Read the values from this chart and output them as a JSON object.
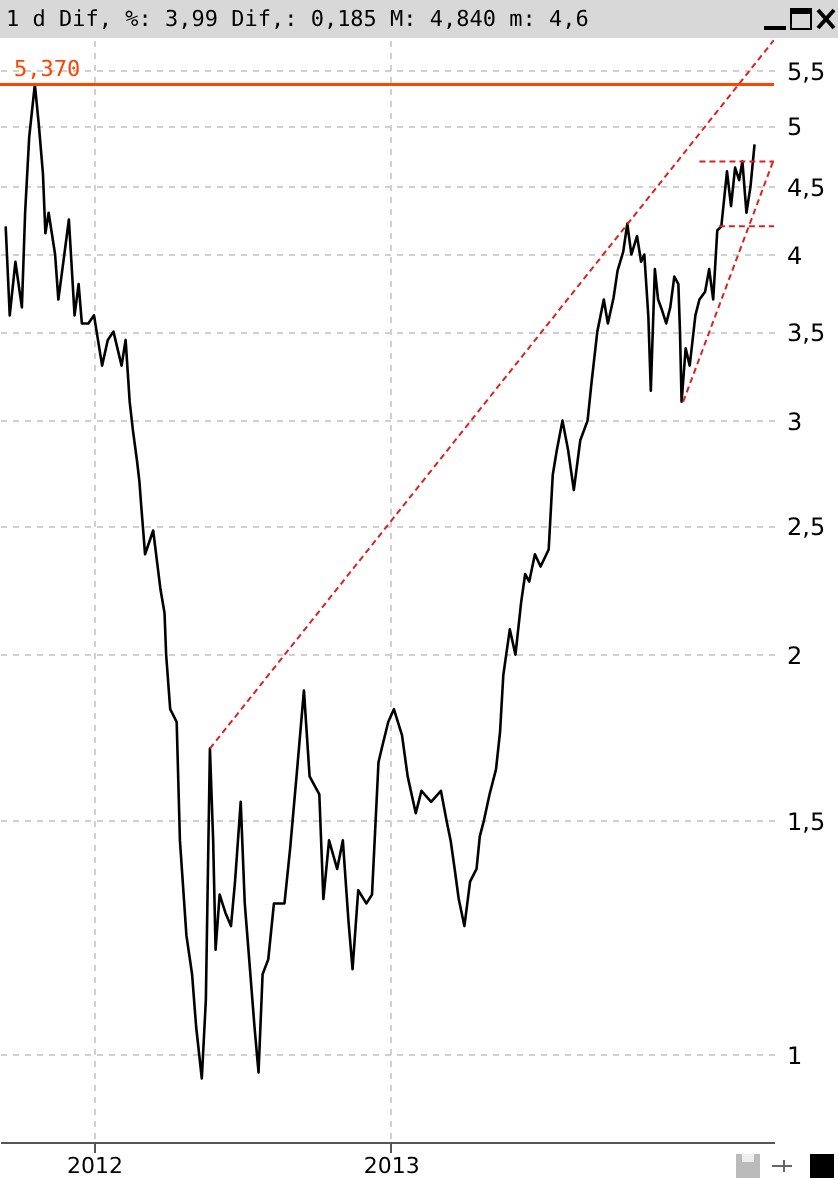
{
  "chart_data": {
    "type": "line",
    "title": "1 d Dif, %: 3,99 Dif,: 0,185 M: 4,840 m: 4,6",
    "log": "y",
    "grid": true,
    "marker": "none",
    "xlim": [
      "2011-09-07",
      "2014-04-19"
    ],
    "xticks": [
      "2012",
      "2013"
    ],
    "ylim": [
      0.86,
      5.8
    ],
    "yticks": [
      1,
      {
        "value": 1.5,
        "label": "1,5"
      },
      2,
      {
        "value": 2.5,
        "label": "2,5"
      },
      3,
      {
        "value": 3.5,
        "label": "3,5"
      },
      4,
      {
        "value": 4.5,
        "label": "4,5"
      },
      5,
      {
        "value": 5.5,
        "label": "5,5"
      }
    ],
    "ref_lines": [
      {
        "axis": "y",
        "value": 5.37,
        "label": "5,370",
        "color": "#ff4400"
      }
    ],
    "series": [
      {
        "type": "line",
        "color": "#000000",
        "line_style": "solid",
        "x": [
          "2011-09-14",
          "2011-09-19",
          "2011-09-26",
          "2011-10-04",
          "2011-10-08",
          "2011-10-13",
          "2011-10-20",
          "2011-10-25",
          "2011-10-30",
          "2011-11-02",
          "2011-11-06",
          "2011-11-14",
          "2011-11-18",
          "2011-11-23",
          "2011-12-01",
          "2011-12-08",
          "2011-12-13",
          "2011-12-17",
          "2011-12-25",
          "2012-01-01",
          "2012-01-11",
          "2012-01-18",
          "2012-01-25",
          "2012-02-04",
          "2012-02-09",
          "2012-02-14",
          "2012-02-18",
          "2012-02-23",
          "2012-02-26",
          "2012-02-28",
          "2012-03-04",
          "2012-03-14",
          "2012-03-23",
          "2012-03-28",
          "2012-03-30",
          "2012-04-04",
          "2012-04-12",
          "2012-04-16",
          "2012-04-24",
          "2012-05-01",
          "2012-05-06",
          "2012-05-13",
          "2012-05-18",
          "2012-05-23",
          "2012-05-27",
          "2012-05-30",
          "2012-06-04",
          "2012-06-11",
          "2012-06-18",
          "2012-06-23",
          "2012-06-30",
          "2012-07-05",
          "2012-07-10",
          "2012-07-17",
          "2012-07-22",
          "2012-07-27",
          "2012-08-03",
          "2012-08-10",
          "2012-08-23",
          "2012-08-30",
          "2012-09-08",
          "2012-09-16",
          "2012-09-23",
          "2012-10-05",
          "2012-10-10",
          "2012-10-17",
          "2012-10-27",
          "2012-11-03",
          "2012-11-10",
          "2012-11-15",
          "2012-11-22",
          "2012-12-02",
          "2012-12-09",
          "2012-12-17",
          "2012-12-21",
          "2012-12-29",
          "2013-01-05",
          "2013-01-15",
          "2013-01-22",
          "2013-02-01",
          "2013-02-08",
          "2013-02-20",
          "2013-03-04",
          "2013-03-11",
          "2013-03-16",
          "2013-03-21",
          "2013-03-26",
          "2013-04-02",
          "2013-04-09",
          "2013-04-17",
          "2013-04-21",
          "2013-04-26",
          "2013-05-03",
          "2013-05-11",
          "2013-05-16",
          "2013-05-20",
          "2013-05-28",
          "2013-06-04",
          "2013-06-11",
          "2013-06-16",
          "2013-06-21",
          "2013-06-28",
          "2013-07-05",
          "2013-07-15",
          "2013-07-20",
          "2013-07-25",
          "2013-08-01",
          "2013-08-08",
          "2013-08-15",
          "2013-08-23",
          "2013-09-01",
          "2013-09-06",
          "2013-09-13",
          "2013-09-21",
          "2013-09-26",
          "2013-10-03",
          "2013-10-08",
          "2013-10-15",
          "2013-10-20",
          "2013-10-25",
          "2013-11-01",
          "2013-11-06",
          "2013-11-10",
          "2013-11-15",
          "2013-11-18",
          "2013-11-23",
          "2013-11-27",
          "2013-12-02",
          "2013-12-07",
          "2013-12-12",
          "2013-12-17",
          "2013-12-22",
          "2013-12-24",
          "2013-12-26",
          "2013-12-31",
          "2014-01-05",
          "2014-01-12",
          "2014-01-17",
          "2014-01-24",
          "2014-01-29",
          "2014-02-03",
          "2014-02-08",
          "2014-02-13",
          "2014-02-20",
          "2014-02-25",
          "2014-03-02",
          "2014-03-07",
          "2014-03-11",
          "2014-03-16",
          "2014-03-21",
          "2014-03-26"
        ],
        "values": [
          4.2,
          3.6,
          3.95,
          3.65,
          4.3,
          4.9,
          5.37,
          5.0,
          4.6,
          4.15,
          4.3,
          4.0,
          3.7,
          3.9,
          4.25,
          3.6,
          3.8,
          3.55,
          3.55,
          3.6,
          3.3,
          3.45,
          3.5,
          3.3,
          3.45,
          3.1,
          2.95,
          2.8,
          2.7,
          2.6,
          2.38,
          2.48,
          2.24,
          2.15,
          2.0,
          1.82,
          1.78,
          1.45,
          1.23,
          1.15,
          1.05,
          0.96,
          1.1,
          1.7,
          1.45,
          1.2,
          1.32,
          1.28,
          1.25,
          1.35,
          1.55,
          1.3,
          1.19,
          1.05,
          0.97,
          1.15,
          1.18,
          1.3,
          1.3,
          1.43,
          1.65,
          1.88,
          1.62,
          1.57,
          1.31,
          1.45,
          1.38,
          1.45,
          1.26,
          1.16,
          1.33,
          1.3,
          1.32,
          1.66,
          1.7,
          1.78,
          1.82,
          1.74,
          1.62,
          1.52,
          1.58,
          1.55,
          1.58,
          1.5,
          1.45,
          1.38,
          1.31,
          1.25,
          1.35,
          1.38,
          1.46,
          1.5,
          1.57,
          1.64,
          1.75,
          1.93,
          2.09,
          2.0,
          2.19,
          2.3,
          2.27,
          2.38,
          2.33,
          2.4,
          2.73,
          2.85,
          3.0,
          2.85,
          2.66,
          2.9,
          3.0,
          3.21,
          3.5,
          3.7,
          3.55,
          3.71,
          3.89,
          4.02,
          4.22,
          4.0,
          4.13,
          3.95,
          4.0,
          3.59,
          3.16,
          3.9,
          3.7,
          3.63,
          3.55,
          3.65,
          3.85,
          3.8,
          3.5,
          3.1,
          3.4,
          3.3,
          3.6,
          3.7,
          3.75,
          3.9,
          3.7,
          4.17,
          4.2,
          4.62,
          4.35,
          4.65,
          4.55,
          4.7,
          4.3,
          4.5,
          4.84
        ]
      },
      {
        "type": "line",
        "color": "#dd2020",
        "line_style": "dashed",
        "x": [
          "2012-05-23",
          "2014-04-19"
        ],
        "values": [
          1.7,
          5.8
        ]
      },
      {
        "type": "line",
        "color": "#dd2020",
        "line_style": "dashed",
        "x": [
          "2013-12-28",
          "2014-04-19"
        ],
        "values": [
          3.1,
          4.72
        ]
      },
      {
        "type": "line",
        "color": "#dd2020",
        "line_style": "dashed",
        "x": [
          "2014-01-17",
          "2014-04-19"
        ],
        "values": [
          4.7,
          4.7
        ]
      },
      {
        "type": "line",
        "color": "#dd2020",
        "line_style": "dashed",
        "x": [
          "2014-02-10",
          "2014-04-19"
        ],
        "values": [
          4.2,
          4.2
        ]
      }
    ]
  }
}
